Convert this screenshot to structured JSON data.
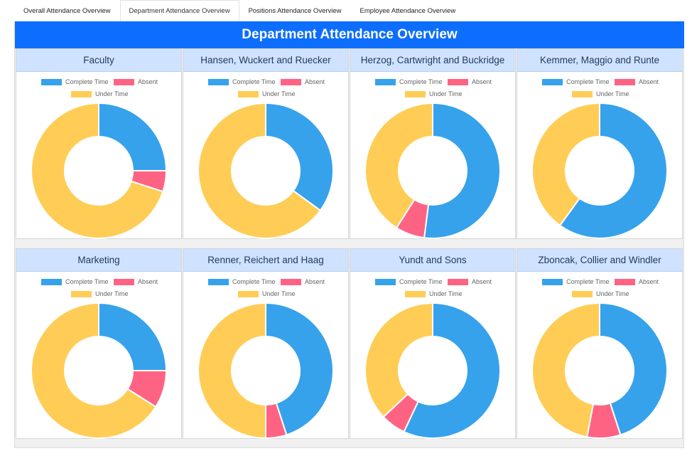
{
  "tabs": [
    {
      "label": "Overall Attendance Overview",
      "active": false
    },
    {
      "label": "Department Attendance Overview",
      "active": true
    },
    {
      "label": "Positions Attendance Overview",
      "active": false
    },
    {
      "label": "Employee Attendance Overview",
      "active": false
    }
  ],
  "banner": {
    "title": "Department Attendance Overview"
  },
  "legend": {
    "complete": "Complete Time",
    "absent": "Absent",
    "under": "Under Time"
  },
  "colors": {
    "complete": "#36a2eb",
    "absent": "#ff6384",
    "under": "#ffcd56"
  },
  "chart_data": [
    {
      "type": "pie",
      "title": "Faculty",
      "categories": [
        "Complete Time",
        "Absent",
        "Under Time"
      ],
      "values": [
        25,
        5,
        70
      ]
    },
    {
      "type": "pie",
      "title": "Hansen, Wuckert and Ruecker",
      "categories": [
        "Complete Time",
        "Absent",
        "Under Time"
      ],
      "values": [
        35,
        0,
        65
      ]
    },
    {
      "type": "pie",
      "title": "Herzog, Cartwright and Buckridge",
      "categories": [
        "Complete Time",
        "Absent",
        "Under Time"
      ],
      "values": [
        52,
        7,
        41
      ]
    },
    {
      "type": "pie",
      "title": "Kemmer, Maggio and Runte",
      "categories": [
        "Complete Time",
        "Absent",
        "Under Time"
      ],
      "values": [
        60,
        0,
        40
      ]
    },
    {
      "type": "pie",
      "title": "Marketing",
      "categories": [
        "Complete Time",
        "Absent",
        "Under Time"
      ],
      "values": [
        25,
        9,
        66
      ]
    },
    {
      "type": "pie",
      "title": "Renner, Reichert and Haag",
      "categories": [
        "Complete Time",
        "Absent",
        "Under Time"
      ],
      "values": [
        45,
        5,
        50
      ]
    },
    {
      "type": "pie",
      "title": "Yundt and Sons",
      "categories": [
        "Complete Time",
        "Absent",
        "Under Time"
      ],
      "values": [
        57,
        6,
        37
      ]
    },
    {
      "type": "pie",
      "title": "Zboncak, Collier and Windler",
      "categories": [
        "Complete Time",
        "Absent",
        "Under Time"
      ],
      "values": [
        45,
        8,
        47
      ]
    }
  ]
}
